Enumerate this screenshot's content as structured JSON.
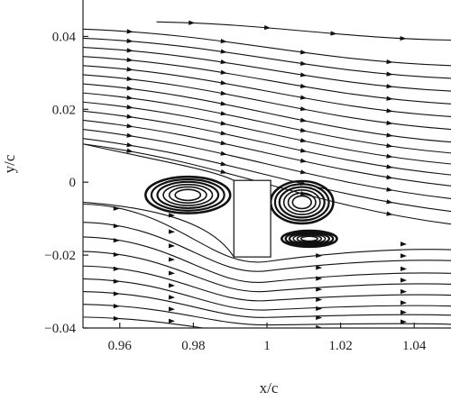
{
  "chart_data": {
    "type": "streamline",
    "title": "",
    "xlabel": "x/c",
    "ylabel": "y/c",
    "xlim": [
      0.95,
      1.05
    ],
    "ylim": [
      -0.04,
      0.05
    ],
    "x_ticks": [
      0.96,
      0.98,
      1,
      1.02,
      1.04
    ],
    "x_tick_labels": [
      "0.96",
      "0.98",
      "1",
      "1.02",
      "1.04"
    ],
    "y_ticks": [
      0.04,
      0.02,
      0,
      -0.02,
      -0.04
    ],
    "y_tick_labels": [
      "0.04",
      "0.02",
      "0",
      "−0.02",
      "−0.04"
    ],
    "grid": false,
    "upper_streamlines": {
      "left_y": [
        0.042,
        0.0395,
        0.037,
        0.0345,
        0.032,
        0.0295,
        0.027,
        0.0245,
        0.022,
        0.0195,
        0.017,
        0.0145,
        0.012,
        0.0105
      ],
      "right_y": [
        0.032,
        0.0285,
        0.025,
        0.0215,
        0.018,
        0.0145,
        0.011,
        0.008,
        0.005,
        0.002,
        -0.001,
        -0.0045,
        -0.008,
        -0.0115
      ]
    },
    "top_streamline": {
      "x_start": 0.97,
      "y_start": 0.044,
      "y_end": 0.039
    },
    "lower_streamlines": {
      "left_y": [
        -0.006,
        -0.011,
        -0.015,
        -0.019,
        -0.023,
        -0.0265,
        -0.03,
        -0.0335,
        -0.037
      ],
      "right_y": [
        -0.0185,
        -0.0215,
        -0.025,
        -0.028,
        -0.031,
        -0.034,
        -0.0365,
        -0.039,
        -0.0415
      ]
    },
    "vortices": [
      {
        "cx": 0.9785,
        "cy": -0.0035,
        "rx": 0.0115,
        "ry": 0.005
      },
      {
        "cx": 1.0095,
        "cy": -0.0055,
        "rx": 0.0085,
        "ry": 0.0058
      },
      {
        "cx": 1.0115,
        "cy": -0.0155,
        "rx": 0.0075,
        "ry": 0.0022
      }
    ],
    "gap": {
      "x_left": 0.991,
      "x_right": 1.001,
      "y_top": 0.0005,
      "y_bottom": -0.0205
    }
  }
}
